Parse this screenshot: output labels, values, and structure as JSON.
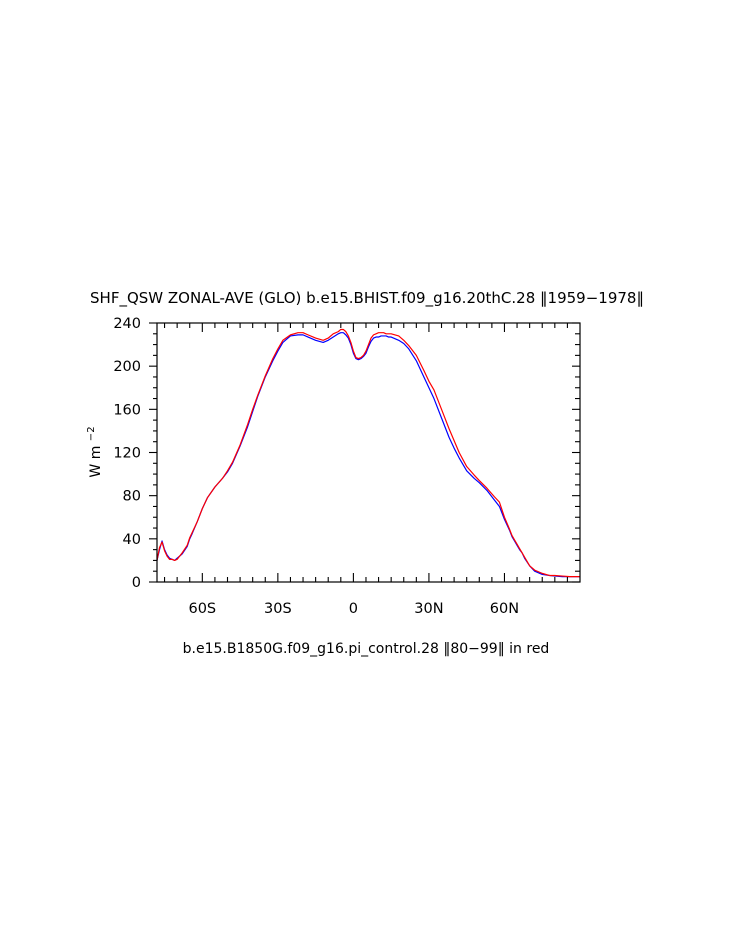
{
  "chart_data": {
    "type": "line",
    "title": "SHF_QSW ZONAL-AVE (GLO) b.e15.BHIST.f09_g16.20thC.28  ‖1959−1978‖",
    "title_parts": {
      "main": "SHF_QSW ZONAL-AVE (GLO) b.e15.BHIST.f09_g16.20thC.28",
      "years": "1959−1978"
    },
    "subtitle_parts": {
      "case": "b.e15.B1850G.f09_g16.pi_control.28",
      "years": "80−99",
      "suffix": "in red"
    },
    "ylabel_base": "W m",
    "ylabel_exp": "−2",
    "xlabel": "",
    "xlim": [
      -78,
      90
    ],
    "ylim": [
      0,
      240
    ],
    "xticks": [
      {
        "value": -60,
        "label": "60S"
      },
      {
        "value": -30,
        "label": "30S"
      },
      {
        "value": 0,
        "label": "0"
      },
      {
        "value": 30,
        "label": "30N"
      },
      {
        "value": 60,
        "label": "60N"
      }
    ],
    "yticks": [
      {
        "value": 0,
        "label": "0"
      },
      {
        "value": 40,
        "label": "40"
      },
      {
        "value": 80,
        "label": "80"
      },
      {
        "value": 120,
        "label": "120"
      },
      {
        "value": 160,
        "label": "160"
      },
      {
        "value": 200,
        "label": "200"
      },
      {
        "value": 240,
        "label": "240"
      }
    ],
    "series": [
      {
        "color": "#0000ff",
        "x": [
          -78,
          -77,
          -76,
          -75,
          -74,
          -73,
          -72,
          -71,
          -70,
          -68,
          -66,
          -65,
          -64,
          -62,
          -60,
          -58,
          -55,
          -52,
          -50,
          -48,
          -45,
          -42,
          -40,
          -38,
          -35,
          -32,
          -30,
          -28,
          -25,
          -22,
          -20,
          -18,
          -15,
          -12,
          -10,
          -8,
          -6,
          -5,
          -4,
          -3,
          -2,
          -1,
          0,
          1,
          2,
          3,
          4,
          5,
          6,
          7,
          8,
          9,
          10,
          11,
          12,
          13,
          14,
          15,
          18,
          20,
          22,
          25,
          28,
          30,
          32,
          35,
          38,
          40,
          42,
          45,
          48,
          50,
          53,
          56,
          58,
          60,
          62,
          63,
          64,
          65,
          66,
          67,
          68,
          70,
          72,
          75,
          78,
          80,
          83,
          86,
          88,
          90
        ],
        "y": [
          20,
          30,
          38,
          30,
          25,
          22,
          21,
          20,
          22,
          26,
          33,
          40,
          45,
          56,
          68,
          78,
          88,
          96,
          102,
          110,
          126,
          144,
          158,
          172,
          190,
          205,
          214,
          222,
          228,
          229,
          229,
          227,
          224,
          222,
          224,
          227,
          230,
          231,
          231,
          229,
          226,
          220,
          212,
          207,
          206,
          207,
          209,
          212,
          218,
          223,
          226,
          227,
          227,
          228,
          228,
          228,
          227,
          227,
          224,
          221,
          216,
          205,
          190,
          180,
          170,
          152,
          134,
          124,
          115,
          103,
          96,
          92,
          85,
          76,
          70,
          58,
          48,
          42,
          38,
          34,
          30,
          27,
          22,
          15,
          10,
          7,
          6,
          5.5,
          5,
          5,
          5,
          5
        ]
      },
      {
        "color": "#ff0000",
        "x": [
          -78,
          -77,
          -76,
          -75,
          -74,
          -73,
          -72,
          -71,
          -70,
          -68,
          -66,
          -65,
          -64,
          -62,
          -60,
          -58,
          -55,
          -52,
          -50,
          -48,
          -45,
          -42,
          -40,
          -38,
          -35,
          -32,
          -30,
          -28,
          -25,
          -22,
          -20,
          -18,
          -15,
          -12,
          -10,
          -8,
          -6,
          -5,
          -4,
          -3,
          -2,
          -1,
          0,
          1,
          2,
          3,
          4,
          5,
          6,
          7,
          8,
          9,
          10,
          11,
          12,
          13,
          14,
          15,
          18,
          20,
          22,
          25,
          28,
          30,
          32,
          35,
          38,
          40,
          42,
          45,
          48,
          50,
          53,
          56,
          58,
          60,
          62,
          63,
          64,
          65,
          66,
          67,
          68,
          70,
          72,
          75,
          78,
          80,
          83,
          86,
          88,
          90
        ],
        "y": [
          20,
          32,
          37,
          29,
          24,
          21,
          21,
          20,
          21,
          27,
          34,
          41,
          46,
          56,
          68,
          78,
          88,
          96,
          103,
          111,
          127,
          146,
          160,
          173,
          191,
          207,
          216,
          224,
          229,
          231,
          231,
          229,
          226,
          224,
          226,
          230,
          232,
          234,
          234,
          232,
          228,
          222,
          214,
          208,
          207,
          208,
          210,
          214,
          220,
          226,
          229,
          230,
          231,
          231,
          231,
          230,
          230,
          230,
          228,
          224,
          219,
          210,
          196,
          186,
          178,
          160,
          142,
          131,
          120,
          107,
          99,
          94,
          87,
          79,
          74,
          60,
          49,
          43,
          39,
          35,
          31,
          27,
          23,
          15,
          11,
          8,
          6,
          6,
          5.5,
          5,
          5,
          5
        ]
      }
    ],
    "colors": {
      "axis": "#000000",
      "control_series": "#ff0000",
      "hist_series": "#0000ff"
    }
  }
}
